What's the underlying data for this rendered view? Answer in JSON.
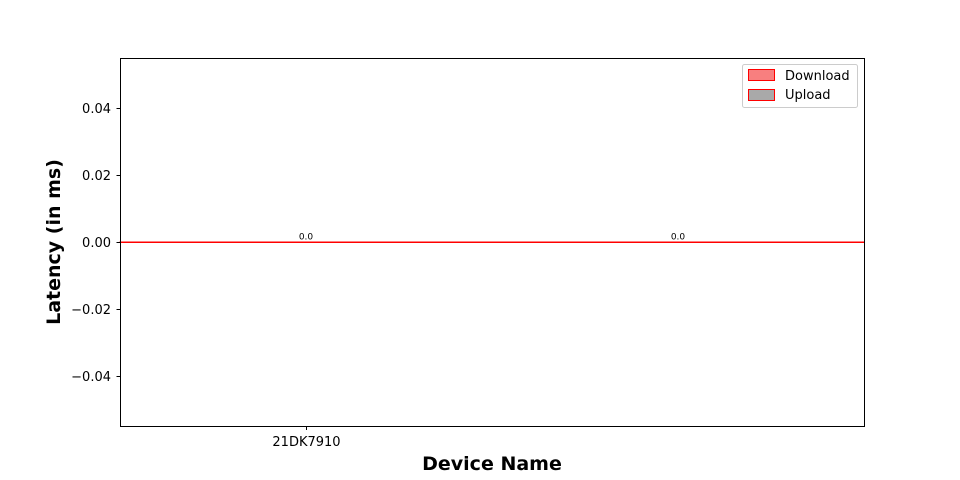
{
  "chart_data": {
    "type": "bar",
    "categories": [
      "21DK7910"
    ],
    "series": [
      {
        "name": "Download",
        "values": [
          0.0
        ],
        "color": "#f87f7f",
        "edge": "#ff0000"
      },
      {
        "name": "Upload",
        "values": [
          0.0
        ],
        "color": "#a9a9a9",
        "edge": "#ff0000"
      }
    ],
    "data_labels": [
      "0.0",
      "0.0"
    ],
    "xlabel": "Device Name",
    "ylabel": "Latency (in ms)",
    "ylim": [
      -0.055,
      0.055
    ],
    "yticks": [
      -0.04,
      -0.02,
      0.0,
      0.02,
      0.04
    ],
    "ytick_labels": [
      "−0.04",
      "−0.02",
      "0.00",
      "0.02",
      "0.04"
    ],
    "xlim": [
      -0.5,
      1.5
    ],
    "legend_position": "top-right",
    "grid": false
  }
}
